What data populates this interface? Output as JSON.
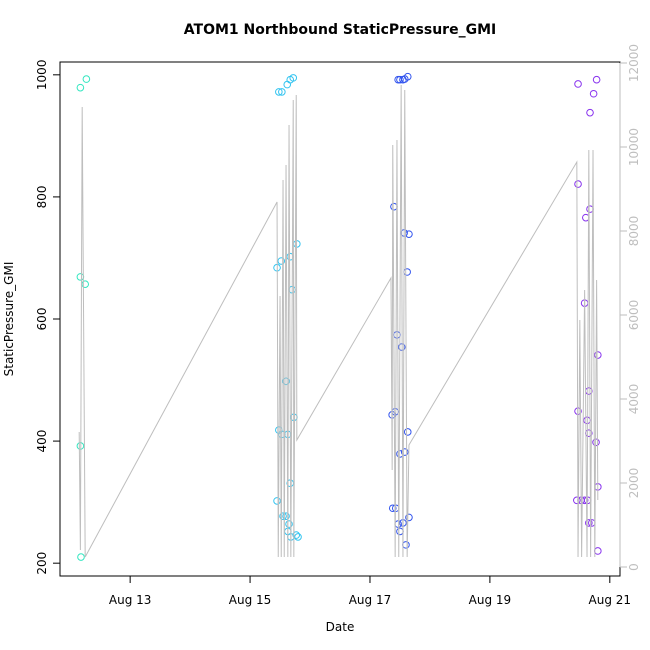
{
  "chart_data": {
    "type": "scatter",
    "title": "ATOM1 Northbound StaticPressure_GMI",
    "x_label": "Date",
    "y_label": "StaticPressure_GMI",
    "xlim": [
      11.83,
      21.17
    ],
    "xticks": [
      {
        "value": 13,
        "label": "Aug 13"
      },
      {
        "value": 15,
        "label": "Aug 15"
      },
      {
        "value": 17,
        "label": "Aug 17"
      },
      {
        "value": 19,
        "label": "Aug 19"
      },
      {
        "value": 21,
        "label": "Aug 21"
      }
    ],
    "ylim": [
      179,
      1021
    ],
    "yticks": [
      200,
      400,
      600,
      800,
      1000
    ],
    "y2lim": [
      -214,
      12024
    ],
    "y2ticks": [
      0,
      2000,
      4000,
      6000,
      8000,
      10000,
      12000
    ],
    "y2_color": "#bebebe",
    "series": [
      {
        "color": "#33e6c0",
        "x": [
          12.17,
          12.27,
          12.17,
          12.25,
          12.17,
          12.18
        ],
        "values": [
          979,
          993,
          669,
          657,
          392,
          210
        ]
      },
      {
        "color": "#33c4f0",
        "x": [
          15.48,
          15.53,
          15.62,
          15.67,
          15.72,
          15.78,
          15.45,
          15.52,
          15.67,
          15.7,
          15.6,
          15.48,
          15.53,
          15.63,
          15.73,
          15.67,
          15.45,
          15.55,
          15.6,
          15.65,
          15.63,
          15.68,
          15.77,
          15.8
        ],
        "values": [
          972,
          972,
          984,
          992,
          995,
          723,
          684,
          695,
          702,
          648,
          498,
          418,
          411,
          411,
          439,
          331,
          302,
          277,
          277,
          264,
          252,
          243,
          246,
          243
        ]
      },
      {
        "color": "#3355ee",
        "x": [
          17.47,
          17.5,
          17.55,
          17.58,
          17.63,
          17.4,
          17.57,
          17.65,
          17.45,
          17.53,
          17.37,
          17.42,
          17.63,
          17.58,
          17.5,
          17.38,
          17.43,
          17.47,
          17.55,
          17.5,
          17.65,
          17.6,
          17.62
        ],
        "values": [
          992,
          992,
          992,
          993,
          997,
          784,
          741,
          739,
          574,
          554,
          443,
          448,
          415,
          382,
          379,
          290,
          290,
          264,
          266,
          252,
          275,
          230,
          677
        ]
      },
      {
        "color": "#8833ee",
        "x": [
          20.47,
          20.78,
          20.73,
          20.67,
          20.47,
          20.6,
          20.67,
          20.58,
          20.8,
          20.65,
          20.47,
          20.62,
          20.65,
          20.77,
          20.8,
          20.45,
          20.52,
          20.58,
          20.63,
          20.65,
          20.7,
          20.8
        ],
        "values": [
          985,
          992,
          969,
          938,
          821,
          766,
          780,
          626,
          541,
          482,
          449,
          434,
          413,
          398,
          325,
          303,
          303,
          303,
          303,
          266,
          266,
          220
        ]
      },
      {
        "type": "line",
        "axis": "y2",
        "color": "#bebebe",
        "x": [
          12.15,
          12.17,
          12.2,
          12.25,
          15.45,
          15.47,
          15.5,
          15.52,
          15.55,
          15.57,
          15.6,
          15.63,
          15.65,
          15.68,
          15.72,
          15.73,
          15.77,
          15.78,
          17.35,
          17.37,
          17.38,
          17.42,
          17.45,
          17.48,
          17.52,
          17.55,
          17.58,
          17.62,
          17.65,
          20.45,
          20.47,
          20.5,
          20.53,
          20.58,
          20.62,
          20.65,
          20.68,
          20.72,
          20.75,
          20.78,
          20.8
        ],
        "values": [
          3214,
          405,
          10952,
          238,
          8690,
          238,
          6452,
          238,
          9214,
          238,
          9571,
          238,
          10524,
          238,
          11119,
          238,
          11238,
          3024,
          6881,
          2310,
          10048,
          238,
          10167,
          238,
          11476,
          238,
          11357,
          238,
          2905,
          9643,
          238,
          5881,
          238,
          6595,
          238,
          9929,
          238,
          9929,
          238,
          6833,
          1595
        ]
      }
    ]
  }
}
